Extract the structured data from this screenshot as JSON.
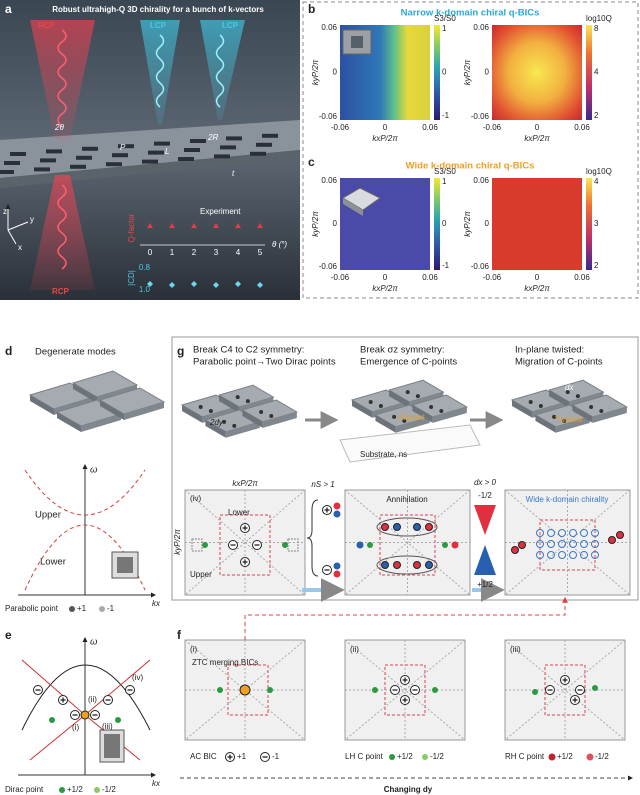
{
  "panel_a": {
    "label": "a",
    "title": "Robust ultrahigh-Q 3D chirality for a bunch of k-vectors",
    "beam_left": "RCP",
    "beam_mid": "LCP",
    "beam_right": "LCP",
    "angle": "2θ",
    "period": "P",
    "length": "L",
    "radius": "2R",
    "thickness": "t",
    "axis_z": "z",
    "axis_y": "y",
    "axis_x": "x",
    "beam_bottom": "RCP",
    "legend": "Experiment",
    "q_label": "Q-factor",
    "cd_label": "|CD|",
    "theta_ticks": [
      "0",
      "1",
      "2",
      "3",
      "4",
      "5"
    ],
    "theta_label": "θ (°)",
    "cd_ticks": [
      "0.8",
      "1.0"
    ]
  },
  "panel_b": {
    "label": "b",
    "title": "Narrow k-domain chiral q-BICs",
    "y_ticks": [
      "0.06",
      "0",
      "-0.06"
    ],
    "y_label": "kyP/2π",
    "x_ticks": [
      "-0.06",
      "0",
      "0.06"
    ],
    "x_label": "kxP/2π",
    "cbar1_label": "S3/S0",
    "cbar1_ticks": [
      "1",
      "0",
      "-1"
    ],
    "cbar2_label": "log10Q",
    "cbar2_ticks": [
      "8",
      "4",
      "2"
    ]
  },
  "panel_c": {
    "label": "c",
    "title": "Wide k-domain chiral q-BICs",
    "y_ticks": [
      "0.06",
      "0",
      "-0.06"
    ],
    "y_label": "kyP/2π",
    "x_ticks": [
      "-0.06",
      "0",
      "0.06"
    ],
    "x_label": "kxP/2π",
    "cbar1_label": "S3/S0",
    "cbar1_ticks": [
      "1",
      "0",
      "-1"
    ],
    "cbar2_label": "log10Q",
    "cbar2_ticks": [
      "4",
      "3",
      "2"
    ]
  },
  "panel_d": {
    "label": "d",
    "title": "Degenerate modes",
    "omega": "ω",
    "upper": "Upper",
    "lower": "Lower",
    "legend": "Parabolic point",
    "plus": "+1",
    "minus": "-1",
    "kx": "kx"
  },
  "panel_e": {
    "label": "e",
    "omega": "ω",
    "marks": [
      "(i)",
      "(ii)",
      "(iii)",
      "(iv)"
    ],
    "legend": "Dirac point",
    "plus": "+1/2",
    "minus": "-1/2",
    "kx": "kx"
  },
  "panel_g": {
    "label": "g",
    "step1": [
      "Break C4 to C2 symmetry:",
      "Parabolic point→Two Dirac points"
    ],
    "step2": [
      "Break σz symmetry:",
      "Emergence of C-points"
    ],
    "step3": [
      "In-plane twisted:",
      "Migration of C-points"
    ],
    "dy": "2dy",
    "aligned": "Aligned",
    "substrate": "Substrate, ns",
    "dx": "dx",
    "twisted": "Twisted",
    "kx_label": "kxP/2π",
    "iv": "(iv)",
    "ky_label": "kyP/2π",
    "lower": "Lower",
    "upper": "Upper",
    "ns": "nS > 1",
    "annihilation": "Annihilation",
    "dx_cond": "dx > 0",
    "minus_half": "-1/2",
    "plus_half": "+1/2",
    "wide": "Wide k-domain chirality"
  },
  "panel_f": {
    "label": "f",
    "i": "(i)",
    "ztc": "ZTC merging BICs",
    "ii": "(ii)",
    "iii": "(iii)",
    "ac": "AC BIC",
    "ac_plus": "+1",
    "ac_minus": "-1",
    "lh": "LH C point",
    "lh_plus": "+1/2",
    "lh_minus": "-1/2",
    "rh": "RH C point",
    "rh_plus": "+1/2",
    "rh_minus": "-1/2",
    "changing": "Changing dy"
  }
}
